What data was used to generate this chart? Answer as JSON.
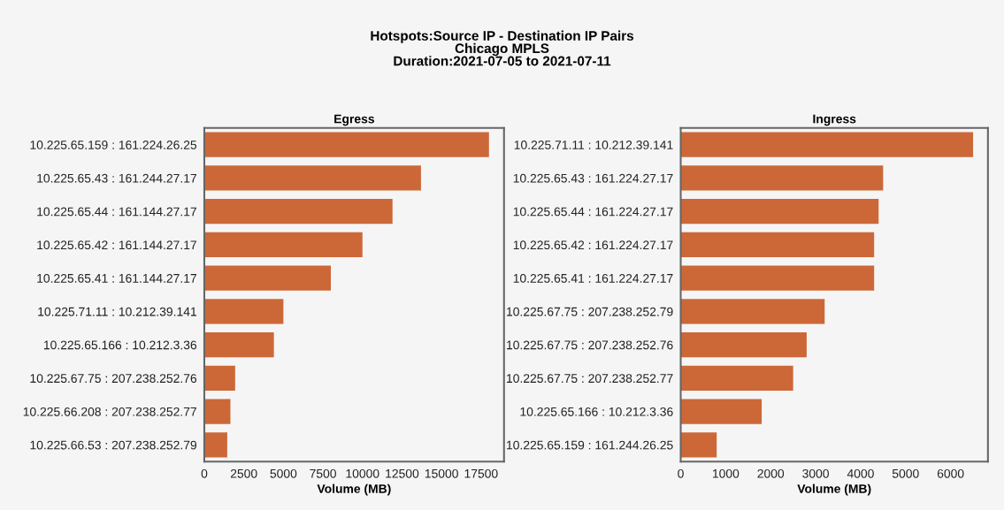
{
  "chart_data": [
    {
      "type": "bar",
      "orientation": "horizontal",
      "title": "Egress",
      "xlabel": "Volume (MB)",
      "annotations": [
        "Hotspots:Source IP - Destination IP Pairs\nChicago MPLS\nDuration:2021-07-05 to 2021-07-11"
      ],
      "categories": [
        "10.225.65.159 : 161.224.26.25",
        "10.225.65.43 : 161.244.27.17",
        "10.225.65.44 : 161.144.27.17",
        "10.225.65.42 : 161.144.27.17",
        "10.225.65.41 : 161.144.27.17",
        "10.225.71.11 : 10.212.39.141",
        "10.225.65.166 : 10.212.3.36",
        "10.225.67.75 : 207.238.252.76",
        "10.225.66.208 : 207.238.252.77",
        "10.225.66.53 : 207.238.252.79"
      ],
      "values": [
        18000,
        13700,
        11900,
        10000,
        8000,
        5000,
        4400,
        1950,
        1650,
        1450
      ],
      "color": "#cc6838",
      "xlim": [
        0,
        18950
      ],
      "xticks": [
        0,
        2500,
        5000,
        7500,
        10000,
        12500,
        15000,
        17500
      ],
      "grid": false,
      "legend": false
    },
    {
      "type": "bar",
      "orientation": "horizontal",
      "title": "Ingress",
      "xlabel": "Volume (MB)",
      "categories": [
        "10.225.71.11 : 10.212.39.141",
        "10.225.65.43 : 161.224.27.17",
        "10.225.65.44 : 161.224.27.17",
        "10.225.65.42 : 161.224.27.17",
        "10.225.65.41 : 161.224.27.17",
        "10.225.67.75 : 207.238.252.79",
        "10.225.67.75 : 207.238.252.76",
        "10.225.67.75 : 207.238.252.77",
        "10.225.65.166 : 10.212.3.36",
        "10.225.65.159 : 161.244.26.25"
      ],
      "values": [
        6500,
        4500,
        4400,
        4300,
        4300,
        3200,
        2800,
        2500,
        1800,
        800
      ],
      "color": "#cc6838",
      "xlim": [
        0,
        6830
      ],
      "xticks": [
        0,
        1000,
        2000,
        3000,
        4000,
        5000,
        6000
      ],
      "grid": false,
      "legend": false
    }
  ]
}
